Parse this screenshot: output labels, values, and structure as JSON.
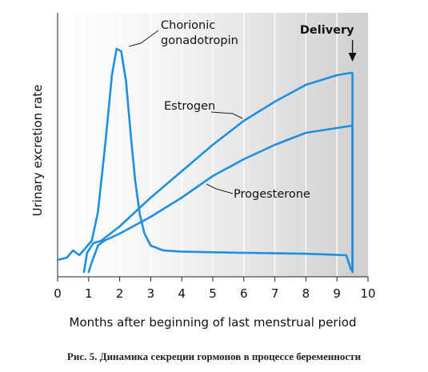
{
  "chart_data": {
    "type": "line",
    "xlabel": "Months after beginning of last menstrual period",
    "ylabel": "Urinary excretion rate",
    "xlim": [
      0,
      10
    ],
    "ylim": [
      0,
      100
    ],
    "x_ticks": [
      "0",
      "1",
      "2",
      "3",
      "4",
      "5",
      "6",
      "7",
      "8",
      "9",
      "10"
    ],
    "background": "gray gradient shading, darker toward delivery",
    "line_color": "#1f8fe0",
    "series": [
      {
        "name": "Chorionic gonadotropin",
        "label_lines": [
          "Chorionic",
          "gonadotropin"
        ],
        "points": [
          [
            0,
            5
          ],
          [
            0.3,
            6
          ],
          [
            0.5,
            9
          ],
          [
            0.7,
            7
          ],
          [
            0.9,
            10
          ],
          [
            1.1,
            13
          ],
          [
            1.3,
            25
          ],
          [
            1.55,
            55
          ],
          [
            1.75,
            82
          ],
          [
            1.9,
            93
          ],
          [
            2.05,
            92
          ],
          [
            2.2,
            80
          ],
          [
            2.35,
            58
          ],
          [
            2.5,
            38
          ],
          [
            2.65,
            24
          ],
          [
            2.8,
            16
          ],
          [
            3.0,
            11
          ],
          [
            3.4,
            9
          ],
          [
            4.0,
            8.5
          ],
          [
            6.0,
            8
          ],
          [
            8.0,
            7.6
          ],
          [
            9.3,
            7
          ],
          [
            9.45,
            1
          ]
        ]
      },
      {
        "name": "Estrogen",
        "label": "Estrogen",
        "points": [
          [
            0.85,
            0
          ],
          [
            0.95,
            8
          ],
          [
            1.15,
            12
          ],
          [
            1.4,
            13
          ],
          [
            2.0,
            19
          ],
          [
            3.0,
            31
          ],
          [
            4.0,
            42
          ],
          [
            5.0,
            53
          ],
          [
            6.0,
            63
          ],
          [
            7.0,
            71
          ],
          [
            8.0,
            78
          ],
          [
            9.0,
            82
          ],
          [
            9.45,
            83
          ],
          [
            9.5,
            83
          ],
          [
            9.5,
            0
          ]
        ]
      },
      {
        "name": "Progesterone",
        "label": "Progesterone",
        "points": [
          [
            1.0,
            0
          ],
          [
            1.1,
            4
          ],
          [
            1.3,
            11
          ],
          [
            1.5,
            13
          ],
          [
            2.0,
            16
          ],
          [
            3.0,
            23
          ],
          [
            4.0,
            31
          ],
          [
            5.0,
            40
          ],
          [
            6.0,
            47
          ],
          [
            7.0,
            53
          ],
          [
            8.0,
            58
          ],
          [
            9.0,
            60
          ],
          [
            9.5,
            61
          ],
          [
            9.5,
            0
          ]
        ]
      }
    ],
    "annotations": {
      "delivery_label": "Delivery",
      "delivery_x": 9.5
    }
  },
  "caption": "Рис. 5. Динамика секреции гормонов в процессе беременности"
}
